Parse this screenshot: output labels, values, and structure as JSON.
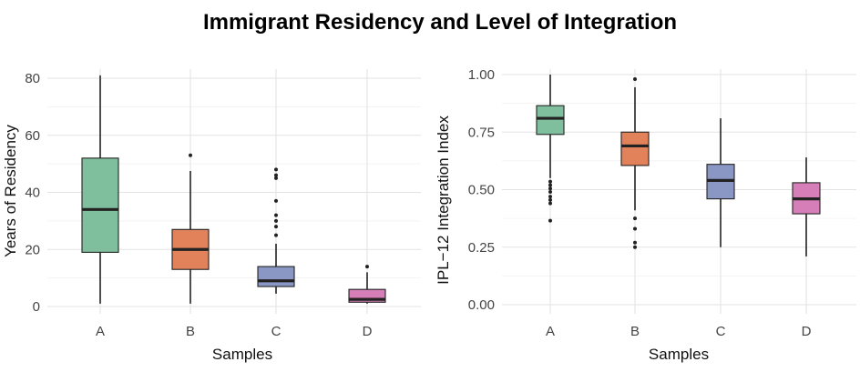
{
  "title": "Immigrant Residency and Level of Integration",
  "chart_data": [
    {
      "type": "boxplot",
      "xlabel": "Samples",
      "ylabel": "Years of Residency",
      "ylim": [
        0,
        83
      ],
      "yticks": [
        0,
        20,
        40,
        60,
        80
      ],
      "categories": [
        "A",
        "B",
        "C",
        "D"
      ],
      "boxes": [
        {
          "category": "A",
          "color": "#7fbf9e",
          "min": 1,
          "q1": 19,
          "median": 34,
          "q3": 52,
          "max": 81,
          "outliers": []
        },
        {
          "category": "B",
          "color": "#e2825a",
          "min": 1,
          "q1": 13,
          "median": 20,
          "q3": 27,
          "max": 47.5,
          "outliers": [
            53
          ]
        },
        {
          "category": "C",
          "color": "#8a97c4",
          "min": 4.5,
          "q1": 7,
          "median": 9,
          "q3": 14,
          "max": 22,
          "outliers": [
            25,
            28,
            30,
            32,
            37,
            45,
            46,
            48
          ]
        },
        {
          "category": "D",
          "color": "#d57eb7",
          "min": 1,
          "q1": 1.5,
          "median": 2.5,
          "q3": 6,
          "max": 12,
          "outliers": [
            14
          ]
        }
      ]
    },
    {
      "type": "boxplot",
      "xlabel": "Samples",
      "ylabel": "IPL−12 Integration Index",
      "ylim": [
        0,
        1
      ],
      "yticks": [
        "0.00",
        "0.25",
        "0.50",
        "0.75",
        "1.00"
      ],
      "categories": [
        "A",
        "B",
        "C",
        "D"
      ],
      "boxes": [
        {
          "category": "A",
          "color": "#7fbf9e",
          "min": 0.55,
          "q1": 0.74,
          "median": 0.81,
          "q3": 0.865,
          "max": 1.0,
          "outliers": [
            0.365,
            0.44,
            0.455,
            0.47,
            0.49,
            0.505,
            0.52,
            0.535
          ]
        },
        {
          "category": "B",
          "color": "#e2825a",
          "min": 0.41,
          "q1": 0.605,
          "median": 0.69,
          "q3": 0.75,
          "max": 0.945,
          "outliers": [
            0.25,
            0.27,
            0.33,
            0.375,
            0.98
          ]
        },
        {
          "category": "C",
          "color": "#8a97c4",
          "min": 0.25,
          "q1": 0.46,
          "median": 0.54,
          "q3": 0.61,
          "max": 0.81,
          "outliers": []
        },
        {
          "category": "D",
          "color": "#d57eb7",
          "min": 0.21,
          "q1": 0.395,
          "median": 0.46,
          "q3": 0.53,
          "max": 0.64,
          "outliers": []
        }
      ]
    }
  ]
}
